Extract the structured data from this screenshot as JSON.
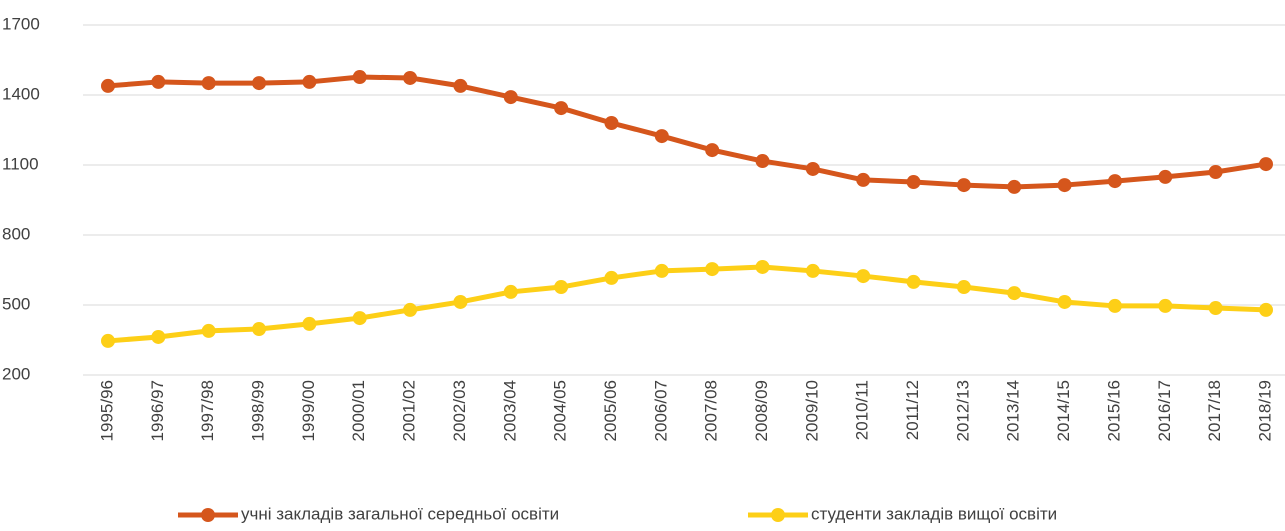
{
  "chart_data": {
    "type": "line",
    "categories": [
      "1995/96",
      "1996/97",
      "1997/98",
      "1998/99",
      "1999/00",
      "2000/01",
      "2001/02",
      "2002/03",
      "2003/04",
      "2004/05",
      "2005/06",
      "2006/07",
      "2007/08",
      "2008/09",
      "2009/10",
      "2010/11",
      "2011/12",
      "2012/13",
      "2013/14",
      "2014/15",
      "2015/16",
      "2016/17",
      "2017/18",
      "2018/19"
    ],
    "series": [
      {
        "name": "учні закладів загальної середньої освіти",
        "color": "#d5561c",
        "values": [
          1439,
          1456,
          1451,
          1451,
          1456,
          1477,
          1473,
          1439,
          1391,
          1344,
          1280,
          1224,
          1164,
          1117,
          1083,
          1036,
          1027,
          1014,
          1006,
          1014,
          1031,
          1049,
          1070,
          1104
        ]
      },
      {
        "name": "студенти закладів вищої освіти",
        "color": "#fdcf17",
        "values": [
          346,
          363,
          389,
          397,
          419,
          444,
          479,
          513,
          556,
          577,
          616,
          646,
          654,
          663,
          646,
          624,
          599,
          577,
          551,
          513,
          496,
          496,
          487,
          479
        ]
      }
    ],
    "ylim": [
      200,
      1700
    ],
    "yticks": [
      200,
      500,
      800,
      1100,
      1400,
      1700
    ],
    "grid": true,
    "legend": "bottom"
  }
}
